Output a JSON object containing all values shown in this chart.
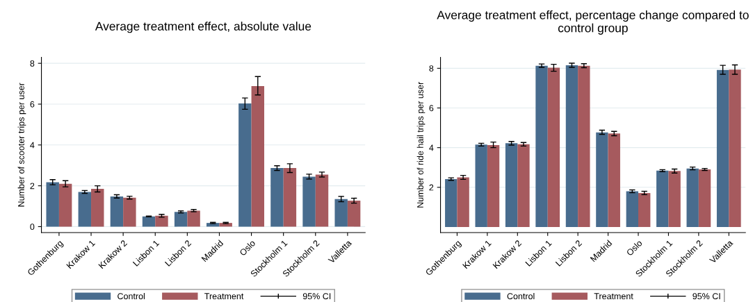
{
  "chart_data": [
    {
      "type": "bar",
      "title": "Average treatment effect, absolute value",
      "ylabel": "Number of scooter trips per user",
      "categories": [
        "Gothenburg",
        "Krakow 1",
        "Krakow 2",
        "Lisbon 1",
        "Lisbon 2",
        "Madrid",
        "Oslo",
        "Stockholm 1",
        "Stockholm 2",
        "Valletta"
      ],
      "series": [
        {
          "name": "Control",
          "color": "#486c8e",
          "values": [
            2.17,
            1.7,
            1.48,
            0.5,
            0.72,
            0.18,
            6.03,
            2.87,
            2.45,
            1.35
          ],
          "errors": [
            [
              2.05,
              2.3
            ],
            [
              1.63,
              1.77
            ],
            [
              1.4,
              1.56
            ],
            [
              0.48,
              0.52
            ],
            [
              0.67,
              0.77
            ],
            [
              0.15,
              0.21
            ],
            [
              5.75,
              6.3
            ],
            [
              2.75,
              2.98
            ],
            [
              2.33,
              2.57
            ],
            [
              1.22,
              1.48
            ]
          ]
        },
        {
          "name": "Treatment",
          "color": "#a65a5e",
          "values": [
            2.1,
            1.85,
            1.42,
            0.53,
            0.78,
            0.18,
            6.88,
            2.87,
            2.55,
            1.27
          ],
          "errors": [
            [
              1.95,
              2.25
            ],
            [
              1.7,
              2.0
            ],
            [
              1.35,
              1.49
            ],
            [
              0.46,
              0.6
            ],
            [
              0.73,
              0.84
            ],
            [
              0.15,
              0.21
            ],
            [
              6.45,
              7.35
            ],
            [
              2.65,
              3.08
            ],
            [
              2.43,
              2.67
            ],
            [
              1.15,
              1.39
            ]
          ]
        }
      ],
      "ylim": [
        -0.29,
        8.29
      ],
      "yticks": [
        0,
        2,
        4,
        6,
        8
      ],
      "grid": "y",
      "legend": "bottom",
      "annotations": [
        "95% CI"
      ]
    },
    {
      "type": "bar",
      "title": "Average treatment effect, percentage change compared to control group",
      "ylabel": "Number of ride hail trips per user",
      "categories": [
        "Gothenburg",
        "Krakow 1",
        "Krakow 2",
        "Lisbon 1",
        "Lisbon 2",
        "Madrid",
        "Oslo",
        "Stockholm 1",
        "Stockholm 2",
        "Valletta"
      ],
      "series": [
        {
          "name": "Control",
          "color": "#486c8e",
          "values": [
            2.41,
            4.15,
            4.22,
            8.13,
            8.15,
            4.77,
            1.8,
            2.84,
            2.95,
            7.92
          ],
          "errors": [
            [
              2.35,
              2.48
            ],
            [
              4.08,
              4.22
            ],
            [
              4.13,
              4.31
            ],
            [
              8.05,
              8.22
            ],
            [
              8.05,
              8.26
            ],
            [
              4.67,
              4.88
            ],
            [
              1.73,
              1.87
            ],
            [
              2.79,
              2.89
            ],
            [
              2.88,
              3.02
            ],
            [
              7.7,
              8.15
            ]
          ]
        },
        {
          "name": "Treatment",
          "color": "#a65a5e",
          "values": [
            2.5,
            4.13,
            4.17,
            8.03,
            8.13,
            4.71,
            1.71,
            2.82,
            2.9,
            7.93
          ],
          "errors": [
            [
              2.4,
              2.6
            ],
            [
              4.0,
              4.28
            ],
            [
              4.08,
              4.26
            ],
            [
              7.85,
              8.2
            ],
            [
              8.03,
              8.23
            ],
            [
              4.6,
              4.82
            ],
            [
              1.63,
              1.8
            ],
            [
              2.72,
              2.92
            ],
            [
              2.85,
              2.95
            ],
            [
              7.7,
              8.17
            ]
          ]
        }
      ],
      "ylim": [
        -0.28,
        8.55
      ],
      "yticks": [
        2,
        4,
        6,
        8
      ],
      "grid": "y",
      "legend": "bottom",
      "annotations": [
        "95% CI"
      ]
    }
  ]
}
